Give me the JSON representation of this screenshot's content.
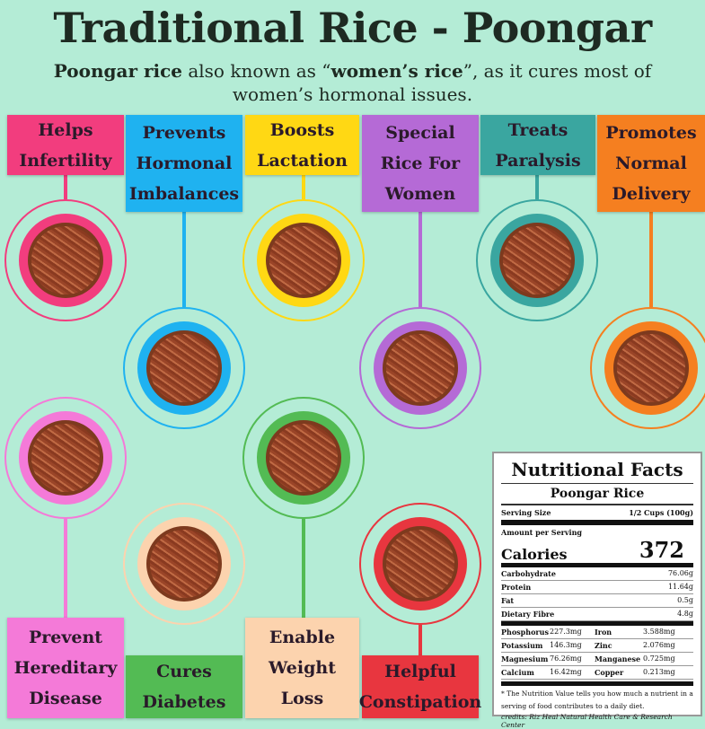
{
  "title": "Traditional Rice - Poongar",
  "subtitle": {
    "b1": "Poongar rice",
    "t1": " also known as “",
    "b2": "women’s rice",
    "t2": "”, as it cures most of women’s hormonal issues."
  },
  "benefits": [
    {
      "label": "Helps\nInfertility",
      "color": "#f23d7e"
    },
    {
      "label": "Prevents\nHormonal\nImbalances",
      "color": "#1fb2f0"
    },
    {
      "label": "Boosts\nLactation",
      "color": "#ffd814"
    },
    {
      "label": "Special\nRice For\nWomen",
      "color": "#b56ad6"
    },
    {
      "label": "Treats\nParalysis",
      "color": "#3aa6a0"
    },
    {
      "label": "Promotes\nNormal\nDelivery",
      "color": "#f57f20"
    },
    {
      "label": "Prevent\nHereditary\nDisease",
      "color": "#f47ad8"
    },
    {
      "label": "Cures\nDiabetes",
      "color": "#53bb54"
    },
    {
      "label": "Enable\nWeight\nLoss",
      "color": "#fcd3ae"
    },
    {
      "label": "Helpful\nConstipation",
      "color": "#e8363f"
    }
  ],
  "nutrition": {
    "heading": "Nutritional Facts",
    "product": "Poongar Rice",
    "serving_label": "Serving Size",
    "serving": "1/2 Cups (100g)",
    "amount_label": "Amount per Serving",
    "calories_label": "Calories",
    "calories": "372",
    "macros": [
      {
        "name": "Carbohydrate",
        "value": "76.06g"
      },
      {
        "name": "Protein",
        "value": "11.64g"
      },
      {
        "name": "Fat",
        "value": "0.5g"
      },
      {
        "name": "Dietary Fibre",
        "value": "4.8g"
      }
    ],
    "minerals": [
      {
        "n1": "Phosphorus",
        "v1": "227.3mg",
        "n2": "Iron",
        "v2": "3.588mg"
      },
      {
        "n1": "Potassium",
        "v1": "146.3mg",
        "n2": "Zinc",
        "v2": "2.076mg"
      },
      {
        "n1": "Magnesium",
        "v1": "76.26mg",
        "n2": "Manganese",
        "v2": "0.725mg"
      },
      {
        "n1": "Calcium",
        "v1": "16.42mg",
        "n2": "Copper",
        "v2": "0.213mg"
      }
    ],
    "note": "* The Nutrition Value tells you how much a nutrient in a serving of food contributes to a daily diet.",
    "credits": "credits: Riz Heal Natural Health Care & Research Center"
  }
}
